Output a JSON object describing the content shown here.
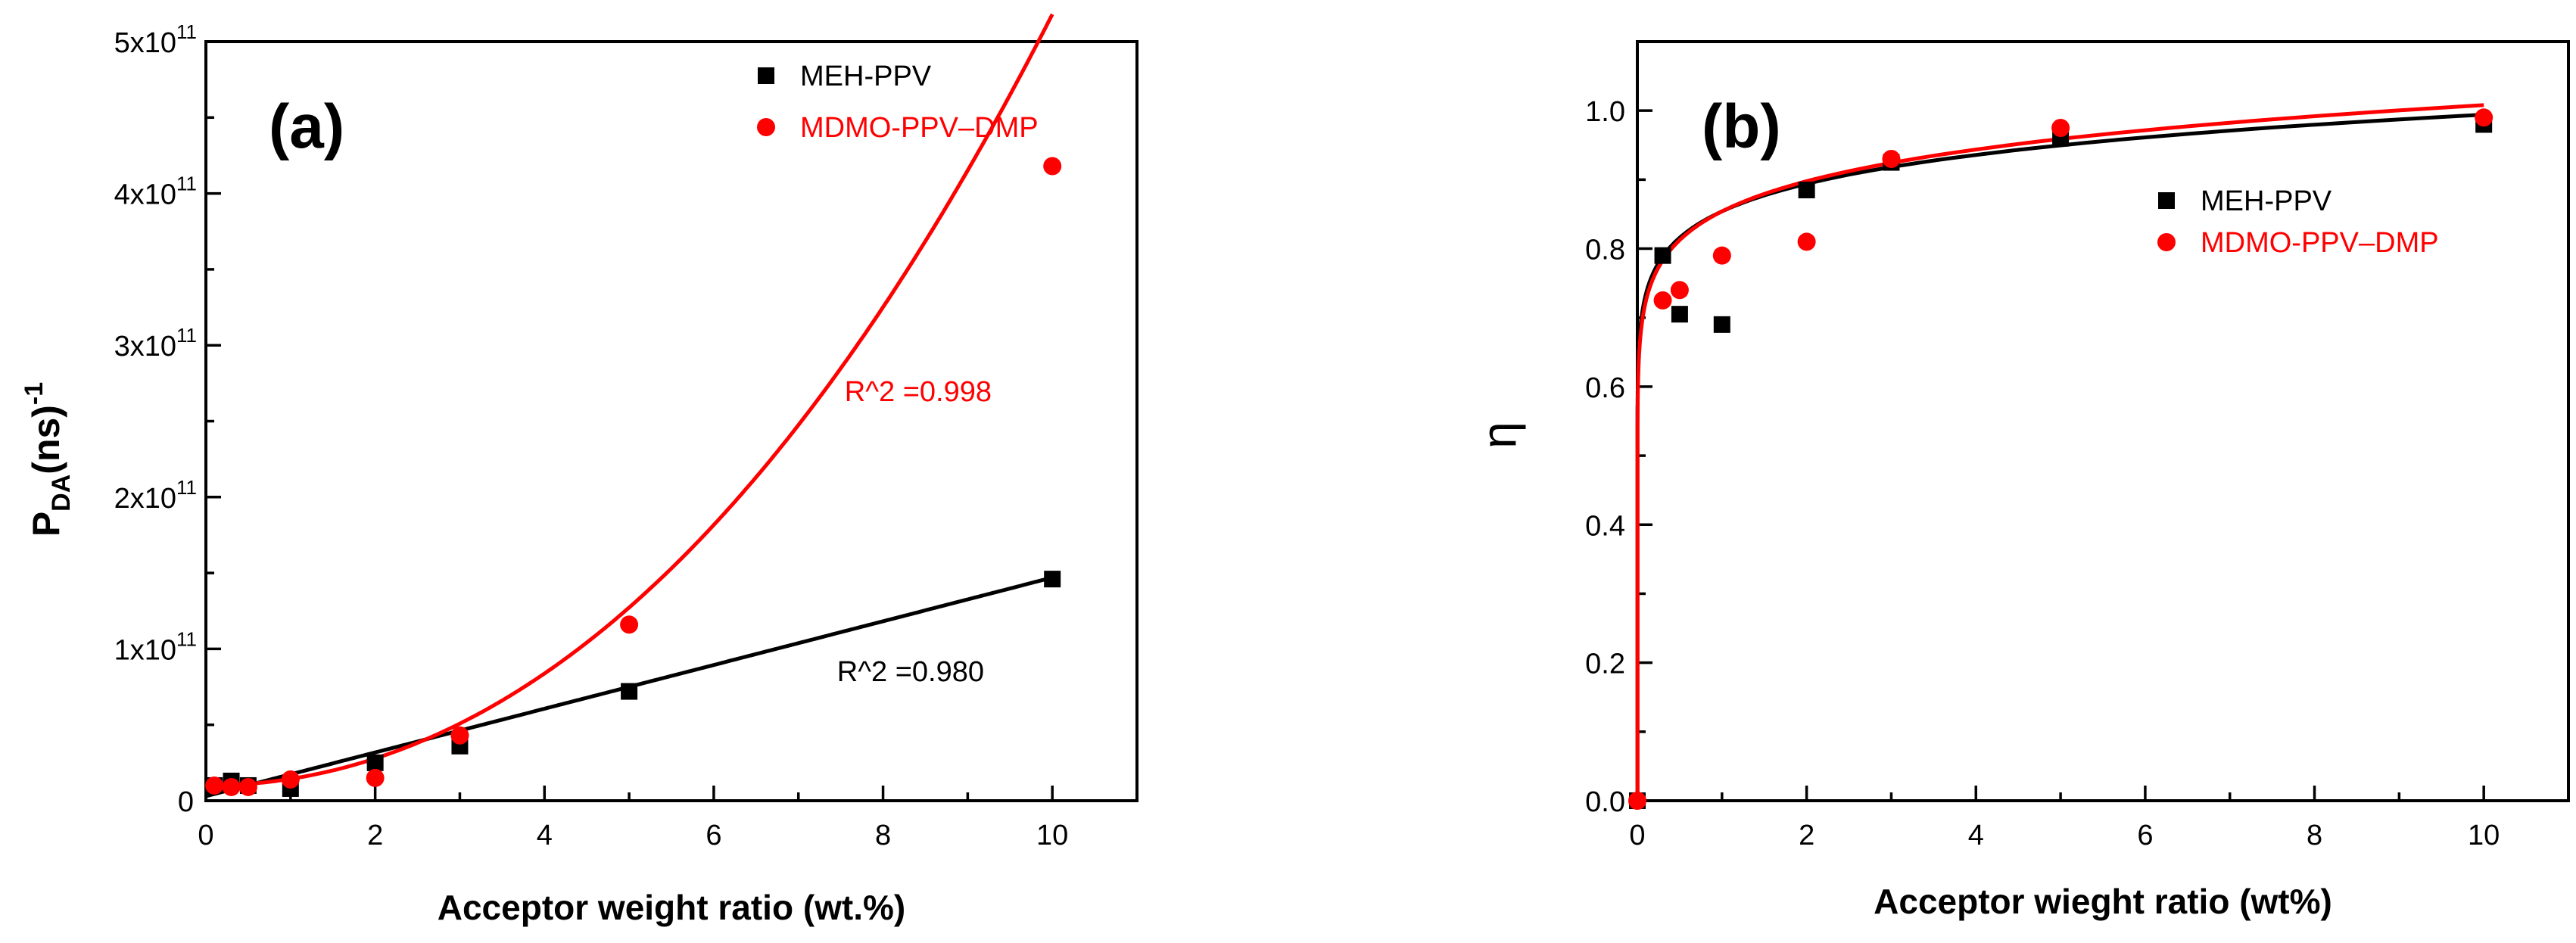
{
  "chart_data": [
    {
      "type": "scatter",
      "panel_label": "(a)",
      "xlabel": "Acceptor weight ratio (wt.%)",
      "ylabel_main": "P",
      "ylabel_sub": "DA",
      "ylabel_rest": "(ns)",
      "ylabel_sup": "-1",
      "xlim": [
        0,
        11
      ],
      "ylim": [
        0,
        500000000000.0
      ],
      "x_ticks": [
        0,
        2,
        4,
        6,
        8,
        10
      ],
      "x_tick_labels": [
        "0",
        "2",
        "4",
        "6",
        "8",
        "10"
      ],
      "y_ticks": [
        0,
        100000000000.0,
        200000000000.0,
        300000000000.0,
        400000000000.0,
        500000000000.0
      ],
      "y_tick_labels": [
        {
          "base": "0",
          "exp": ""
        },
        {
          "base": "1x10",
          "exp": "11"
        },
        {
          "base": "2x10",
          "exp": "11"
        },
        {
          "base": "3x10",
          "exp": "11"
        },
        {
          "base": "4x10",
          "exp": "11"
        },
        {
          "base": "5x10",
          "exp": "11"
        }
      ],
      "series": [
        {
          "name": "MEH-PPV",
          "color": "#000000",
          "marker": "square",
          "x": [
            0.1,
            0.3,
            0.5,
            1,
            2,
            3,
            5,
            10
          ],
          "y": [
            10000000000.0,
            13000000000.0,
            10000000000.0,
            8000000000.0,
            25000000000.0,
            36000000000.0,
            72000000000.0,
            146000000000.0
          ],
          "fit": {
            "kind": "linear",
            "slope": 14400000000.0,
            "intercept": 3000000000.0,
            "x_range": [
              0,
              10
            ]
          },
          "r2_label": "R^2 =0.980"
        },
        {
          "name": "MDMO-PPV–DMP",
          "color": "#ff0000",
          "marker": "circle",
          "x": [
            0.1,
            0.3,
            0.5,
            1,
            2,
            3,
            5,
            10
          ],
          "y": [
            10000000000.0,
            9000000000.0,
            9000000000.0,
            14000000000.0,
            15000000000.0,
            43000000000.0,
            116000000000.0,
            418000000000.0
          ],
          "fit": {
            "kind": "poly",
            "coeffs": [
              10000000000.0,
              0,
              4300000000.0,
              78000000.0
            ],
            "x_range": [
              0,
              10
            ]
          },
          "r2_label": "R^2 =0.998"
        }
      ],
      "legend_position": "top-right"
    },
    {
      "type": "scatter",
      "panel_label": "(b)",
      "xlabel": "Acceptor wieght ratio (wt%)",
      "ylabel": "η",
      "xlim": [
        0,
        11
      ],
      "ylim": [
        0,
        1.1
      ],
      "x_ticks": [
        0,
        2,
        4,
        6,
        8,
        10
      ],
      "x_tick_labels": [
        "0",
        "2",
        "4",
        "6",
        "8",
        "10"
      ],
      "y_ticks": [
        0,
        0.2,
        0.4,
        0.6,
        0.8,
        1.0
      ],
      "y_tick_labels": [
        "0.0",
        "0.2",
        "0.4",
        "0.6",
        "0.8",
        "1.0"
      ],
      "series": [
        {
          "name": "MEH-PPV",
          "color": "#000000",
          "marker": "square",
          "x": [
            0,
            0.3,
            0.5,
            1,
            2,
            3,
            5,
            10
          ],
          "y": [
            0,
            0.79,
            0.705,
            0.69,
            0.885,
            0.925,
            0.96,
            0.98
          ],
          "fit": {
            "kind": "pow",
            "a": 0.854,
            "b": 0.066,
            "x_range": [
              0.002,
              10
            ]
          }
        },
        {
          "name": "MDMO-PPV–DMP",
          "color": "#ff0000",
          "marker": "circle",
          "x": [
            0,
            0.3,
            0.5,
            1,
            2,
            3,
            5,
            10
          ],
          "y": [
            0,
            0.725,
            0.74,
            0.79,
            0.81,
            0.93,
            0.975,
            0.99
          ],
          "fit": {
            "kind": "pow",
            "a": 0.854,
            "b": 0.072,
            "x_range": [
              0.002,
              10
            ]
          }
        }
      ],
      "legend_position": "right"
    }
  ]
}
